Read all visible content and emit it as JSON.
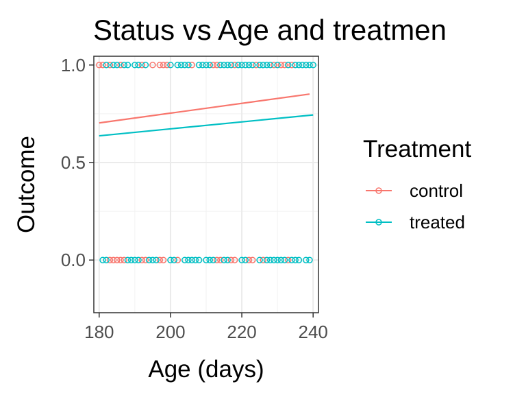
{
  "chart_data": {
    "type": "scatter",
    "title": "Status vs Age and treatmen",
    "xlabel": "Age (days)",
    "ylabel": "Outcome",
    "xlim": [
      178.5,
      241.5
    ],
    "ylim": [
      -0.27,
      1.045
    ],
    "x_ticks": [
      180,
      200,
      220,
      240
    ],
    "x_tick_labels": [
      "180",
      "200",
      "220",
      "240"
    ],
    "y_ticks": [
      0.0,
      0.5,
      1.0
    ],
    "y_tick_labels": [
      "0.0",
      "0.5",
      "1.0"
    ],
    "grid": true,
    "legend": {
      "title": "Treatment",
      "position": "right"
    },
    "series": [
      {
        "name": "control",
        "color": "#F8766D",
        "points": [
          {
            "x": 180,
            "y": 1
          },
          {
            "x": 181,
            "y": 1
          },
          {
            "x": 183,
            "y": 1
          },
          {
            "x": 186,
            "y": 1
          },
          {
            "x": 192,
            "y": 1
          },
          {
            "x": 195,
            "y": 1
          },
          {
            "x": 197,
            "y": 1
          },
          {
            "x": 198,
            "y": 1
          },
          {
            "x": 199,
            "y": 1
          },
          {
            "x": 206,
            "y": 1
          },
          {
            "x": 212,
            "y": 1
          },
          {
            "x": 213,
            "y": 1
          },
          {
            "x": 218,
            "y": 1
          },
          {
            "x": 224,
            "y": 1
          },
          {
            "x": 229,
            "y": 1
          },
          {
            "x": 231,
            "y": 1
          },
          {
            "x": 232,
            "y": 1
          },
          {
            "x": 234,
            "y": 1
          },
          {
            "x": 183,
            "y": 0
          },
          {
            "x": 184,
            "y": 0
          },
          {
            "x": 185,
            "y": 0
          },
          {
            "x": 186,
            "y": 0
          },
          {
            "x": 187,
            "y": 0
          },
          {
            "x": 192,
            "y": 0
          },
          {
            "x": 193,
            "y": 0
          },
          {
            "x": 197,
            "y": 0
          },
          {
            "x": 198,
            "y": 0
          },
          {
            "x": 202,
            "y": 0
          },
          {
            "x": 213,
            "y": 0
          },
          {
            "x": 214,
            "y": 0
          },
          {
            "x": 217,
            "y": 0
          },
          {
            "x": 218,
            "y": 0
          },
          {
            "x": 222,
            "y": 0
          },
          {
            "x": 223,
            "y": 0
          },
          {
            "x": 226,
            "y": 0
          },
          {
            "x": 233,
            "y": 0
          }
        ],
        "trend": {
          "x": [
            180,
            239
          ],
          "y": [
            0.703,
            0.851
          ]
        }
      },
      {
        "name": "treated",
        "color": "#00BFC4",
        "points": [
          {
            "x": 182,
            "y": 1
          },
          {
            "x": 184,
            "y": 1
          },
          {
            "x": 185,
            "y": 1
          },
          {
            "x": 187,
            "y": 1
          },
          {
            "x": 188,
            "y": 1
          },
          {
            "x": 190,
            "y": 1
          },
          {
            "x": 191,
            "y": 1
          },
          {
            "x": 193,
            "y": 1
          },
          {
            "x": 200,
            "y": 1
          },
          {
            "x": 202,
            "y": 1
          },
          {
            "x": 203,
            "y": 1
          },
          {
            "x": 204,
            "y": 1
          },
          {
            "x": 205,
            "y": 1
          },
          {
            "x": 208,
            "y": 1
          },
          {
            "x": 209,
            "y": 1
          },
          {
            "x": 210,
            "y": 1
          },
          {
            "x": 211,
            "y": 1
          },
          {
            "x": 214,
            "y": 1
          },
          {
            "x": 215,
            "y": 1
          },
          {
            "x": 216,
            "y": 1
          },
          {
            "x": 217,
            "y": 1
          },
          {
            "x": 219,
            "y": 1
          },
          {
            "x": 220,
            "y": 1
          },
          {
            "x": 221,
            "y": 1
          },
          {
            "x": 222,
            "y": 1
          },
          {
            "x": 223,
            "y": 1
          },
          {
            "x": 225,
            "y": 1
          },
          {
            "x": 226,
            "y": 1
          },
          {
            "x": 227,
            "y": 1
          },
          {
            "x": 228,
            "y": 1
          },
          {
            "x": 230,
            "y": 1
          },
          {
            "x": 233,
            "y": 1
          },
          {
            "x": 235,
            "y": 1
          },
          {
            "x": 236,
            "y": 1
          },
          {
            "x": 237,
            "y": 1
          },
          {
            "x": 238,
            "y": 1
          },
          {
            "x": 239,
            "y": 1
          },
          {
            "x": 240,
            "y": 1
          },
          {
            "x": 181,
            "y": 0
          },
          {
            "x": 182,
            "y": 0
          },
          {
            "x": 188,
            "y": 0
          },
          {
            "x": 189,
            "y": 0
          },
          {
            "x": 190,
            "y": 0
          },
          {
            "x": 191,
            "y": 0
          },
          {
            "x": 194,
            "y": 0
          },
          {
            "x": 195,
            "y": 0
          },
          {
            "x": 196,
            "y": 0
          },
          {
            "x": 200,
            "y": 0
          },
          {
            "x": 201,
            "y": 0
          },
          {
            "x": 204,
            "y": 0
          },
          {
            "x": 205,
            "y": 0
          },
          {
            "x": 206,
            "y": 0
          },
          {
            "x": 207,
            "y": 0
          },
          {
            "x": 208,
            "y": 0
          },
          {
            "x": 210,
            "y": 0
          },
          {
            "x": 211,
            "y": 0
          },
          {
            "x": 212,
            "y": 0
          },
          {
            "x": 215,
            "y": 0
          },
          {
            "x": 216,
            "y": 0
          },
          {
            "x": 220,
            "y": 0
          },
          {
            "x": 221,
            "y": 0
          },
          {
            "x": 225,
            "y": 0
          },
          {
            "x": 227,
            "y": 0
          },
          {
            "x": 228,
            "y": 0
          },
          {
            "x": 229,
            "y": 0
          },
          {
            "x": 230,
            "y": 0
          },
          {
            "x": 231,
            "y": 0
          },
          {
            "x": 232,
            "y": 0
          },
          {
            "x": 234,
            "y": 0
          },
          {
            "x": 235,
            "y": 0
          },
          {
            "x": 236,
            "y": 0
          },
          {
            "x": 238,
            "y": 0
          },
          {
            "x": 239,
            "y": 0
          }
        ],
        "trend": {
          "x": [
            180,
            240
          ],
          "y": [
            0.637,
            0.744
          ]
        }
      }
    ]
  }
}
